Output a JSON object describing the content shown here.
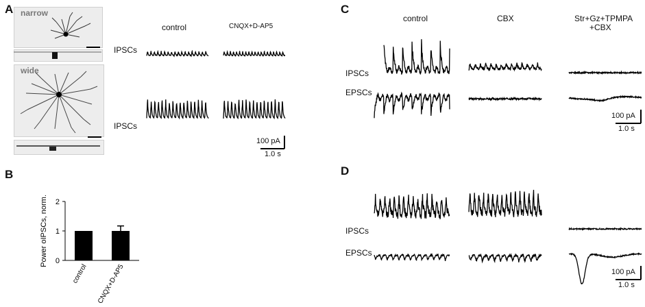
{
  "panels": {
    "A": {
      "letter": "A",
      "cells": {
        "narrow": "narrow",
        "wide": "wide"
      },
      "columns": [
        "control",
        "CNQX+D-AP5"
      ],
      "rows": [
        "IPSCs",
        "IPSCs"
      ],
      "scale": {
        "current": "100 pA",
        "time": "1.0 s"
      }
    },
    "B": {
      "letter": "B",
      "chart_data": {
        "type": "bar",
        "categories": [
          "control",
          "CNQX+D-AP5"
        ],
        "values": [
          1.0,
          1.0
        ],
        "error": [
          0,
          0.17
        ],
        "ylabel": "Power oIPSCs, norm.",
        "ylim": [
          0,
          2
        ],
        "yticks": [
          "0",
          "1",
          "2"
        ],
        "colors": [
          "#000000",
          "#000000"
        ]
      }
    },
    "C": {
      "letter": "C",
      "columns": [
        "control",
        "CBX",
        "Str+Gz+TPMPA",
        "+CBX"
      ],
      "rows": [
        "IPSCs",
        "EPSCs"
      ],
      "scale": {
        "current": "100 pA",
        "time": "1.0 s"
      }
    },
    "D": {
      "letter": "D",
      "rows": [
        "IPSCs",
        "EPSCs"
      ],
      "scale": {
        "current": "100 pA",
        "time": "1.0 s"
      }
    }
  }
}
